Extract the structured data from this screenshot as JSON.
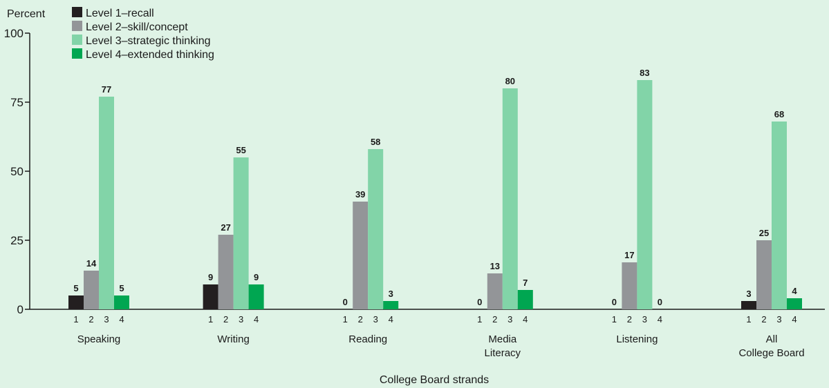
{
  "chart_data": {
    "type": "bar",
    "ylabel": "Percent",
    "xlabel": "College Board strands",
    "ylim": [
      0,
      100
    ],
    "yticks": [
      0,
      25,
      50,
      75,
      100
    ],
    "bar_ticks": [
      "1",
      "2",
      "3",
      "4"
    ],
    "categories": [
      [
        "Speaking"
      ],
      [
        "Writing"
      ],
      [
        "Reading"
      ],
      [
        "Media",
        "Literacy"
      ],
      [
        "Listening"
      ],
      [
        "All",
        "College Board"
      ]
    ],
    "series": [
      {
        "name": "Level 1–recall",
        "color": "#231f20",
        "values": [
          5,
          9,
          0,
          0,
          0,
          3
        ]
      },
      {
        "name": "Level 2–skill/concept",
        "color": "#939598",
        "values": [
          14,
          27,
          39,
          13,
          17,
          25
        ]
      },
      {
        "name": "Level 3–strategic thinking",
        "color": "#82d4a8",
        "values": [
          77,
          55,
          58,
          80,
          83,
          68
        ]
      },
      {
        "name": "Level 4–extended thinking",
        "color": "#00a651",
        "values": [
          5,
          9,
          3,
          7,
          0,
          4
        ]
      }
    ],
    "legend_position": "top-left",
    "grid": false
  }
}
